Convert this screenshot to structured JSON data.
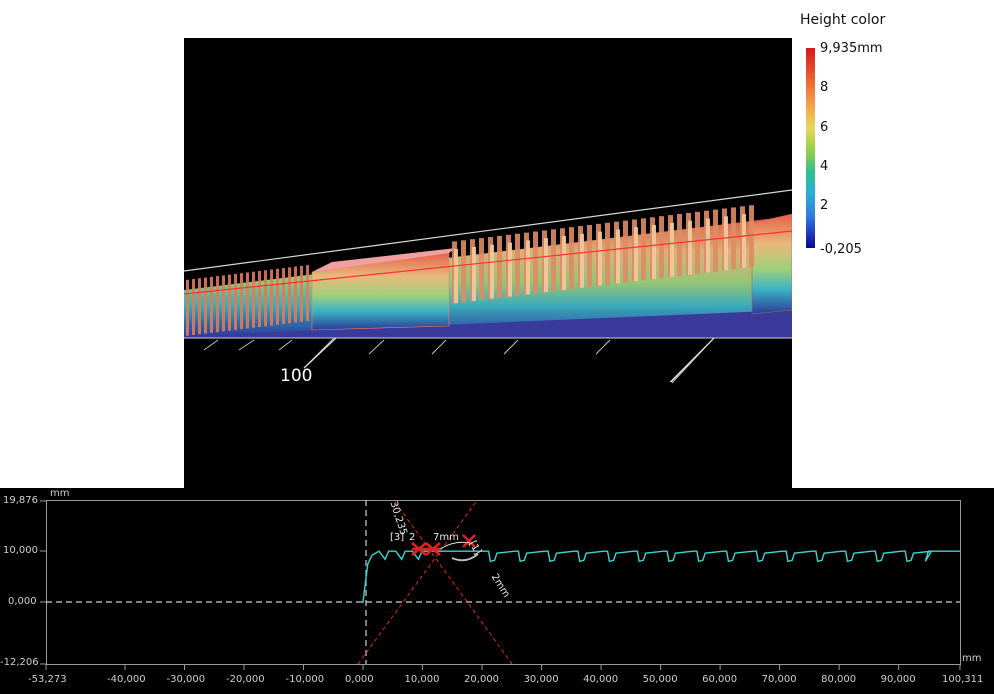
{
  "legend": {
    "title": "Height color",
    "labels": [
      "9,935mm",
      "8",
      "6",
      "4",
      "2",
      "-0,205"
    ],
    "colors": [
      "#d7191c",
      "#f4a04a",
      "#8fd04a",
      "#27b3d4",
      "#0a0a8c"
    ]
  },
  "view3d": {
    "axis_label": "100"
  },
  "profile": {
    "y_unit": "mm",
    "x_unit": "mm",
    "y_ticks": [
      "19,876",
      "10,000",
      "0,000",
      "-12,206"
    ],
    "x_ticks": [
      "-53,273",
      "-40,000",
      "-30,000",
      "-20,000",
      "-10,000",
      "0,000",
      "10,000",
      "20,000",
      "30,000",
      "40,000",
      "50,000",
      "60,000",
      "70,000",
      "80,000",
      "90,000",
      "100,311"
    ],
    "annotations": {
      "label_3": "[3]",
      "label_3_suffix": "2",
      "label_1": "[1]",
      "angle_text": "30,235",
      "dist_text": "7mm",
      "dist_text_2": "2mm"
    },
    "colors": {
      "profile_line": "#39d4d4",
      "measure": "#e02020",
      "grid": "#9a9a9a"
    }
  }
}
